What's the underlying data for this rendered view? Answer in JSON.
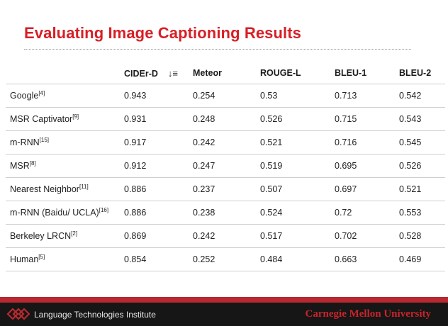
{
  "slide": {
    "title": "Evaluating Image Captioning Results"
  },
  "table": {
    "headers": {
      "model": "",
      "cider": "CIDEr-D",
      "meteor": "Meteor",
      "rouge": "ROUGE-L",
      "bleu1": "BLEU-1",
      "bleu2": "BLEU-2"
    },
    "rows": [
      {
        "name": "Google",
        "ref": "[4]",
        "cider": "0.943",
        "meteor": "0.254",
        "rouge": "0.53",
        "bleu1": "0.713",
        "bleu2": "0.542"
      },
      {
        "name": "MSR Captivator",
        "ref": "[9]",
        "cider": "0.931",
        "meteor": "0.248",
        "rouge": "0.526",
        "bleu1": "0.715",
        "bleu2": "0.543"
      },
      {
        "name": "m-RNN",
        "ref": "[15]",
        "cider": "0.917",
        "meteor": "0.242",
        "rouge": "0.521",
        "bleu1": "0.716",
        "bleu2": "0.545"
      },
      {
        "name": "MSR",
        "ref": "[8]",
        "cider": "0.912",
        "meteor": "0.247",
        "rouge": "0.519",
        "bleu1": "0.695",
        "bleu2": "0.526"
      },
      {
        "name": "Nearest Neighbor",
        "ref": "[11]",
        "cider": "0.886",
        "meteor": "0.237",
        "rouge": "0.507",
        "bleu1": "0.697",
        "bleu2": "0.521"
      },
      {
        "name": "m-RNN (Baidu/ UCLA)",
        "ref": "[16]",
        "cider": "0.886",
        "meteor": "0.238",
        "rouge": "0.524",
        "bleu1": "0.72",
        "bleu2": "0.553"
      },
      {
        "name": "Berkeley LRCN",
        "ref": "[2]",
        "cider": "0.869",
        "meteor": "0.242",
        "rouge": "0.517",
        "bleu1": "0.702",
        "bleu2": "0.528"
      },
      {
        "name": "Human",
        "ref": "[5]",
        "cider": "0.854",
        "meteor": "0.252",
        "rouge": "0.484",
        "bleu1": "0.663",
        "bleu2": "0.469"
      }
    ]
  },
  "footer": {
    "institute": "Language Technologies Institute",
    "university": "Carnegie Mellon University"
  },
  "icons": {
    "sort": "sort-descending-icon",
    "logo": "lti-logo-icon"
  },
  "colors": {
    "title": "#d71f26",
    "footer_band": "#b8292f",
    "footer_bg": "#161616",
    "university": "#c8242b"
  }
}
